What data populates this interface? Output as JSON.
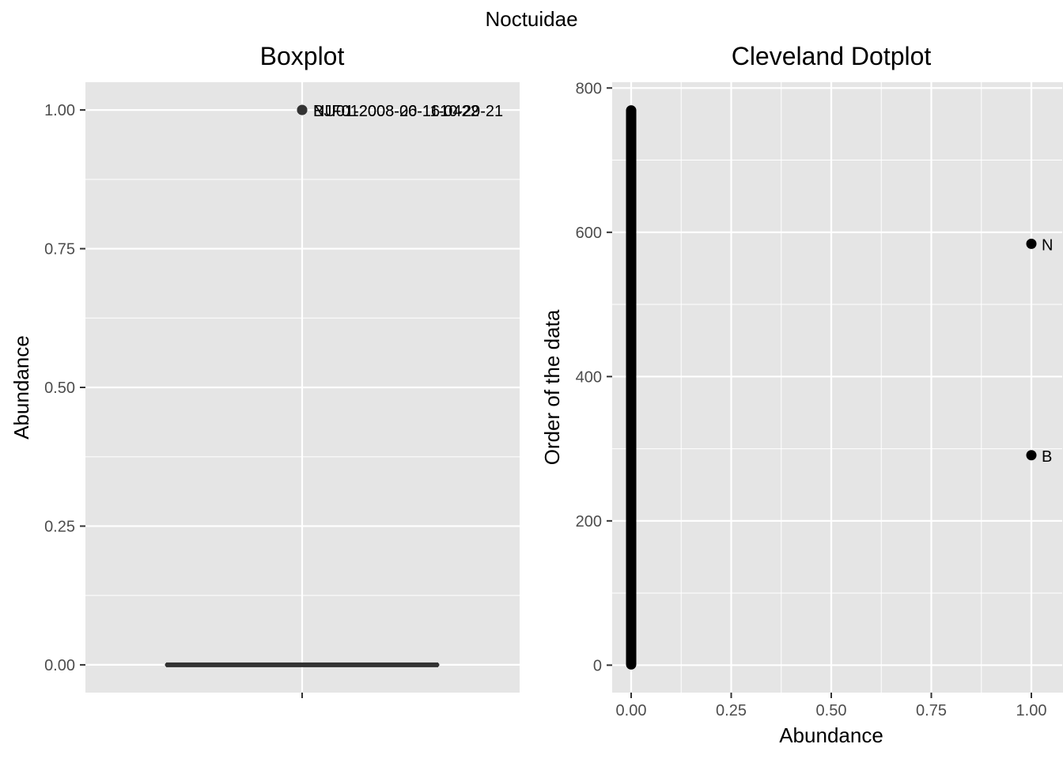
{
  "figure": {
    "title": "Noctuidae"
  },
  "chart_data": [
    {
      "type": "box",
      "title": "Boxplot",
      "xlabel": "",
      "ylabel": "Abundance",
      "ylim": [
        -0.05,
        1.05
      ],
      "y_ticks": [
        0.0,
        0.25,
        0.5,
        0.75,
        1.0
      ],
      "y_tick_labels": [
        "0.00",
        "0.25",
        "0.50",
        "0.75",
        "1.00"
      ],
      "box": {
        "min": 0,
        "q1": 0,
        "median": 0,
        "q3": 0,
        "max": 0
      },
      "outliers": [
        {
          "value": 1,
          "label": "BJF012008-20-1610-29-21"
        },
        {
          "value": 1,
          "label": "NU01-2008-06-11-0422"
        }
      ],
      "grid": true
    },
    {
      "type": "scatter",
      "title": "Cleveland Dotplot",
      "xlabel": "Abundance",
      "ylabel": "Order of the data",
      "xlim": [
        -0.045,
        1.045
      ],
      "ylim": [
        -38,
        808
      ],
      "x_ticks": [
        0.0,
        0.25,
        0.5,
        0.75,
        1.0
      ],
      "x_tick_labels": [
        "0.00",
        "0.25",
        "0.50",
        "0.75",
        "1.00"
      ],
      "y_ticks": [
        0,
        200,
        400,
        600,
        800
      ],
      "y_tick_labels": [
        "0",
        "200",
        "400",
        "600",
        "800"
      ],
      "zero_run": {
        "x": 0,
        "from": 1,
        "to": 769
      },
      "labeled_points": [
        {
          "x": 1,
          "y": 584,
          "label": "N"
        },
        {
          "x": 1,
          "y": 291,
          "label": "B"
        }
      ],
      "grid": true
    }
  ]
}
